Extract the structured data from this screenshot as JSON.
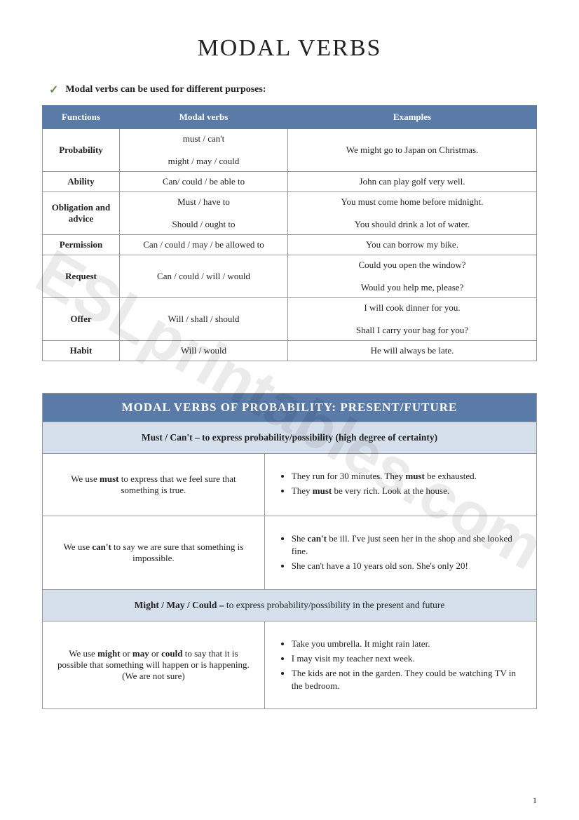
{
  "watermark": "ESLprintables.com",
  "title": "MODAL VERBS",
  "intro": "Modal verbs can be used for different purposes:",
  "table1": {
    "headers": [
      "Functions",
      "Modal verbs",
      "Examples"
    ],
    "rows": [
      {
        "fn": "Probability",
        "mv": "must / can't\n\nmight / may / could",
        "ex": "We might go to Japan on Christmas."
      },
      {
        "fn": "Ability",
        "mv": "Can/ could / be able to",
        "ex": "John can play golf very well."
      },
      {
        "fn": "Obligation and advice",
        "mv": "Must / have to\n\nShould / ought to",
        "ex": "You must come home before midnight.\n\nYou should drink a lot of water."
      },
      {
        "fn": "Permission",
        "mv": "Can / could / may / be allowed to",
        "ex": "You can borrow my bike."
      },
      {
        "fn": "Request",
        "mv": "Can / could / will / would",
        "ex": "Could you open the window?\n\nWould you help me, please?"
      },
      {
        "fn": "Offer",
        "mv": "Will / shall / should",
        "ex": "I will cook dinner for you.\n\nShall I carry your bag for you?"
      },
      {
        "fn": "Habit",
        "mv": "Will / would",
        "ex": "He will always be late."
      }
    ]
  },
  "section2": {
    "header": "MODAL VERBS OF PROBABILITY: PRESENT/FUTURE",
    "sub1": "Must / Can't – to express probability/possibility (high degree of certainty)",
    "r1": {
      "left_pre": "We use ",
      "left_bold": "must",
      "left_post": " to express that we feel sure that something is true.",
      "bullets": [
        {
          "pre": "They run for 30 minutes. They ",
          "b": "must",
          "post": " be exhausted."
        },
        {
          "pre": "They ",
          "b": "must",
          "post": " be very rich. Look at the house."
        }
      ]
    },
    "r2": {
      "left_pre": "We use ",
      "left_bold": "can't",
      "left_post": " to say we are sure that something is impossible.",
      "bullets": [
        {
          "pre": "She ",
          "b": "can't",
          "post": " be ill. I've just seen her in the shop and she looked fine."
        },
        {
          "pre": "She can't have a 10 years old son. She's only 20!",
          "b": "",
          "post": ""
        }
      ]
    },
    "sub2_bold": "Might / May / Could  – ",
    "sub2_rest": "to express probability/possibility in the present and future",
    "r3": {
      "left_pre": "We use ",
      "left_b1": "might",
      "left_mid1": " or ",
      "left_b2": "may",
      "left_mid2": " or ",
      "left_b3": "could",
      "left_post": " to say that it is possible that something will happen or is happening. (We are not sure)",
      "bullets": [
        "Take you umbrella. It might rain later.",
        "I may visit my teacher next week.",
        "The kids are not in the garden. They could be watching TV in the bedroom."
      ]
    }
  },
  "pagenum": "1"
}
